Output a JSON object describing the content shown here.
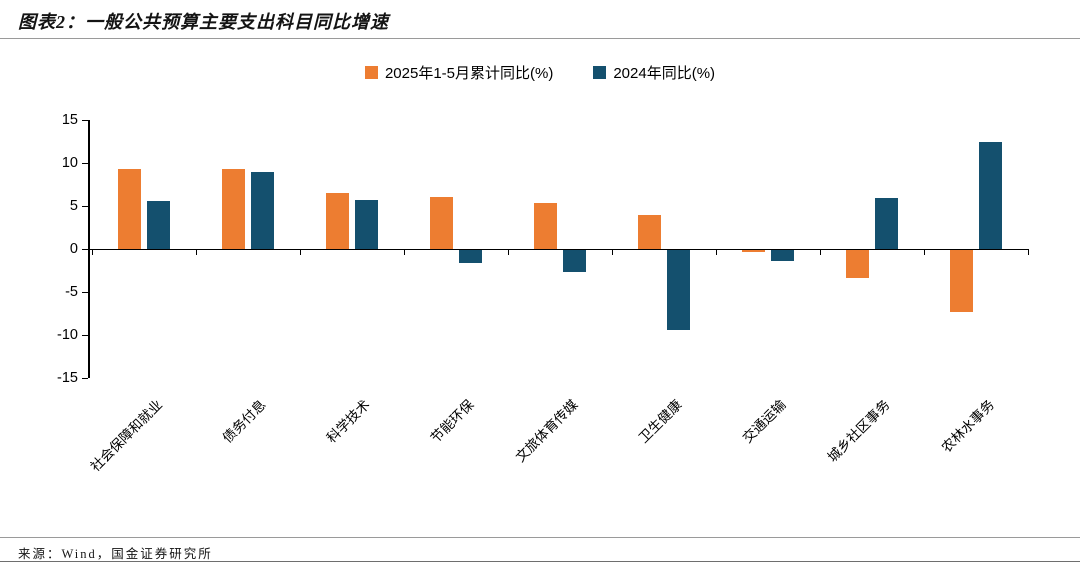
{
  "header": {
    "title": "图表2：一般公共预算主要支出科目同比增速"
  },
  "chart_data": {
    "type": "bar",
    "title": "一般公共预算主要支出科目同比增速",
    "categories": [
      "社会保障和就业",
      "债务付息",
      "科学技术",
      "节能环保",
      "文旅体育传媒",
      "卫生健康",
      "交通运输",
      "城乡社区事务",
      "农林水事务"
    ],
    "series": [
      {
        "name": "2025年1-5月累计同比(%)",
        "color": "#ED7D31",
        "values": [
          9.3,
          9.3,
          6.5,
          6.0,
          5.4,
          3.9,
          -0.2,
          -3.2,
          -7.2
        ]
      },
      {
        "name": "2024年同比(%)",
        "color": "#14506E",
        "values": [
          5.6,
          8.9,
          5.7,
          -1.5,
          -2.5,
          -9.3,
          -1.3,
          5.9,
          12.5
        ]
      }
    ],
    "xlabel": "",
    "ylabel": "",
    "ylim": [
      -15,
      15
    ],
    "yticks": [
      15,
      10,
      5,
      0,
      -5,
      -10,
      -15
    ],
    "legend_position": "top",
    "grid": false,
    "bar_orientation": "vertical",
    "category_label_rotation_deg": 45
  },
  "footer": {
    "source": "来源：Wind，国金证券研究所"
  }
}
